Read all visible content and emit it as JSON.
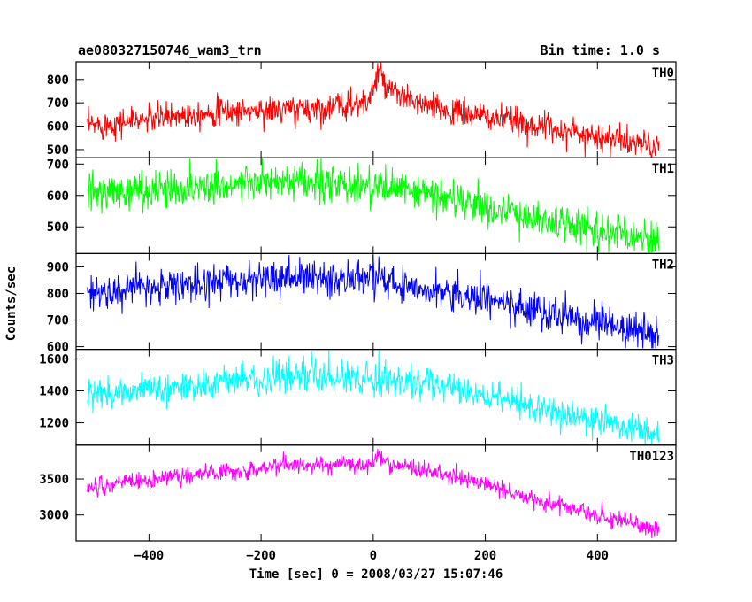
{
  "header": {
    "title": "ae080327150746_wam3_trn",
    "bin_time": "Bin time: 1.0 s"
  },
  "chart_data": {
    "type": "line",
    "xlabel": "Time [sec] 0 = 2008/03/27 15:07:46",
    "ylabel": "Counts/sec",
    "xlim": [
      -530,
      540
    ],
    "x_ticks": [
      -400,
      -200,
      0,
      200,
      400
    ],
    "x_tick_labels": [
      "−400",
      "−200",
      "0",
      "200",
      "400"
    ],
    "x_range_data": [
      -510,
      510
    ],
    "bin_time_s": 1.0,
    "panels": [
      {
        "name": "TH0",
        "color": "#ff0000",
        "ylim": [
          465,
          875
        ],
        "yticks": [
          500,
          600,
          700,
          800
        ],
        "profile": [
          [
            -510,
            600
          ],
          [
            -300,
            660
          ],
          [
            -100,
            675
          ],
          [
            -10,
            700
          ],
          [
            10,
            820
          ],
          [
            30,
            745
          ],
          [
            100,
            680
          ],
          [
            300,
            600
          ],
          [
            510,
            510
          ]
        ],
        "noise_sd": 30,
        "spikes": [
          [
            8,
            870
          ],
          [
            12,
            855
          ],
          [
            -40,
            770
          ]
        ]
      },
      {
        "name": "TH1",
        "color": "#00ff00",
        "ylim": [
          415,
          720
        ],
        "yticks": [
          500,
          600,
          700
        ],
        "profile": [
          [
            -510,
            605
          ],
          [
            -200,
            640
          ],
          [
            0,
            630
          ],
          [
            100,
            605
          ],
          [
            300,
            520
          ],
          [
            510,
            460
          ]
        ],
        "noise_sd": 30,
        "spikes": [
          [
            -280,
            715
          ],
          [
            -100,
            715
          ]
        ]
      },
      {
        "name": "TH2",
        "color": "#0000ff",
        "ylim": [
          590,
          950
        ],
        "yticks": [
          600,
          700,
          800,
          900
        ],
        "profile": [
          [
            -510,
            800
          ],
          [
            -300,
            840
          ],
          [
            -150,
            860
          ],
          [
            0,
            855
          ],
          [
            100,
            820
          ],
          [
            300,
            730
          ],
          [
            510,
            640
          ]
        ],
        "noise_sd": 33,
        "spikes": [
          [
            -150,
            945
          ],
          [
            0,
            945
          ]
        ]
      },
      {
        "name": "TH3",
        "color": "#00ffff",
        "ylim": [
          1060,
          1660
        ],
        "yticks": [
          1200,
          1400,
          1600
        ],
        "profile": [
          [
            -510,
            1370
          ],
          [
            -300,
            1440
          ],
          [
            -150,
            1490
          ],
          [
            0,
            1480
          ],
          [
            100,
            1440
          ],
          [
            300,
            1290
          ],
          [
            510,
            1130
          ]
        ],
        "noise_sd": 48,
        "spikes": [
          [
            10,
            1655
          ],
          [
            -150,
            1620
          ]
        ]
      },
      {
        "name": "TH0123",
        "color": "#ff00ff",
        "ylim": [
          2640,
          3970
        ],
        "yticks": [
          3000,
          3500
        ],
        "profile": [
          [
            -510,
            3380
          ],
          [
            -300,
            3580
          ],
          [
            -160,
            3690
          ],
          [
            -10,
            3700
          ],
          [
            10,
            3820
          ],
          [
            30,
            3710
          ],
          [
            150,
            3530
          ],
          [
            300,
            3200
          ],
          [
            510,
            2780
          ]
        ],
        "noise_sd": 62,
        "spikes": [
          [
            8,
            3920
          ],
          [
            -160,
            3880
          ]
        ]
      }
    ]
  }
}
